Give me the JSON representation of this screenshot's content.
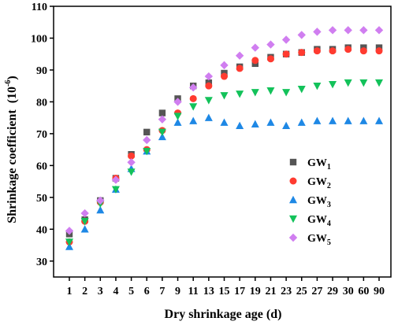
{
  "chart_data": {
    "type": "scatter",
    "xlabel": "Dry shrinkage age  (d)",
    "ylabel": "Shrinkage coefficient",
    "ylabel_unit": "(10",
    "ylabel_unit_exp": "-6",
    "ylabel_unit_close": ")",
    "categories": [
      "1",
      "2",
      "3",
      "4",
      "5",
      "6",
      "7",
      "9",
      "11",
      "13",
      "15",
      "17",
      "19",
      "21",
      "23",
      "25",
      "27",
      "29",
      "30",
      "60",
      "90"
    ],
    "ylim": [
      25,
      110
    ],
    "yticks": [
      30,
      40,
      50,
      60,
      70,
      80,
      90,
      100,
      110
    ],
    "grid": false,
    "legend_position": "right",
    "series": [
      {
        "name": "GW",
        "sub": "1",
        "marker": "square",
        "color": "#555555",
        "values": [
          38.5,
          43,
          49,
          56,
          63.5,
          70.5,
          76.5,
          81,
          85,
          86,
          89,
          91,
          92,
          94,
          95,
          95.5,
          96.5,
          96.5,
          97,
          97,
          97
        ]
      },
      {
        "name": "GW",
        "sub": "2",
        "marker": "circle",
        "color": "#ff3b30",
        "values": [
          36,
          42.5,
          48.5,
          56,
          63,
          65,
          71,
          76.5,
          81,
          85,
          88,
          90.5,
          93,
          93.5,
          95,
          95.5,
          96,
          96,
          96.5,
          96,
          96
        ]
      },
      {
        "name": "GW",
        "sub": "3",
        "marker": "triangle-up",
        "color": "#1e88e5",
        "values": [
          34.5,
          40,
          46,
          52.5,
          59,
          64.5,
          69,
          73.5,
          74,
          75,
          73.5,
          72.5,
          73,
          73.5,
          72.5,
          73.5,
          74,
          74,
          74,
          74,
          74
        ]
      },
      {
        "name": "GW",
        "sub": "4",
        "marker": "triangle-down",
        "color": "#13c25a",
        "values": [
          36,
          42.5,
          48,
          52.5,
          58,
          64.5,
          70.5,
          75.5,
          78.5,
          80.5,
          82,
          82.5,
          83,
          83.5,
          83,
          84,
          85,
          85.5,
          86,
          86,
          86
        ]
      },
      {
        "name": "GW",
        "sub": "5",
        "marker": "diamond",
        "color": "#d07ef0",
        "values": [
          39.5,
          45,
          49,
          55.5,
          61,
          68,
          74.5,
          80,
          84.5,
          88,
          91.5,
          94.5,
          97,
          98,
          99.5,
          101,
          102,
          102.5,
          102.5,
          102.5,
          102.5
        ]
      }
    ]
  }
}
